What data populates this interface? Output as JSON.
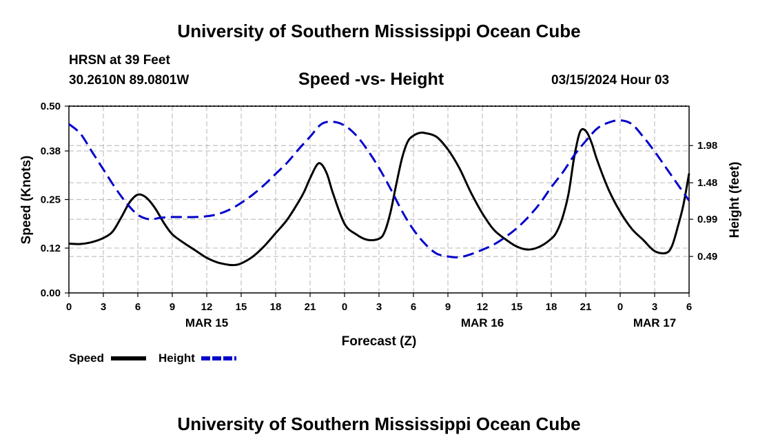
{
  "header": {
    "title_top": "University of Southern Mississippi Ocean Cube",
    "station": "HRSN at 39 Feet",
    "coords": "30.2610N  89.0801W",
    "chart_title": "Speed -vs- Height",
    "datetime": "03/15/2024 Hour 03",
    "title_bottom": "University of Southern Mississippi Ocean Cube"
  },
  "legend": {
    "speed_label": "Speed",
    "height_label": "Height"
  },
  "colors": {
    "speed": "#000000",
    "height": "#0000cc",
    "grid": "#c0c0c0"
  },
  "chart_data": {
    "type": "line",
    "title": "Speed -vs- Height",
    "xlabel": "Forecast (Z)",
    "ylabel_left": "Speed (Knots)",
    "ylabel_right": "Height (feet)",
    "x_range_hours": [
      0,
      54
    ],
    "x_ticks": [
      {
        "h": 0,
        "label": "0"
      },
      {
        "h": 3,
        "label": "3"
      },
      {
        "h": 6,
        "label": "6"
      },
      {
        "h": 9,
        "label": "9"
      },
      {
        "h": 12,
        "label": "12"
      },
      {
        "h": 15,
        "label": "15"
      },
      {
        "h": 18,
        "label": "18"
      },
      {
        "h": 21,
        "label": "21"
      },
      {
        "h": 24,
        "label": "0"
      },
      {
        "h": 27,
        "label": "3"
      },
      {
        "h": 30,
        "label": "6"
      },
      {
        "h": 33,
        "label": "9"
      },
      {
        "h": 36,
        "label": "12"
      },
      {
        "h": 39,
        "label": "15"
      },
      {
        "h": 42,
        "label": "18"
      },
      {
        "h": 45,
        "label": "21"
      },
      {
        "h": 48,
        "label": "0"
      },
      {
        "h": 51,
        "label": "3"
      },
      {
        "h": 54,
        "label": "6"
      }
    ],
    "date_labels": [
      {
        "h": 12,
        "label": "MAR 15"
      },
      {
        "h": 36,
        "label": "MAR 16"
      },
      {
        "h": 51,
        "label": "MAR 17"
      }
    ],
    "left_axis": {
      "range": [
        0,
        0.5
      ],
      "ticks": [
        0.0,
        0.12,
        0.25,
        0.38,
        0.5
      ],
      "tick_labels": [
        "0.00",
        "0.12",
        "0.25",
        "0.38",
        "0.50"
      ]
    },
    "right_axis": {
      "range": [
        0.0,
        2.51
      ],
      "ticks": [
        0.49,
        0.99,
        1.48,
        1.98
      ],
      "tick_labels": [
        "0.49",
        "0.99",
        "1.48",
        "1.98"
      ]
    },
    "series": [
      {
        "name": "Speed",
        "axis": "left",
        "style": "solid",
        "x": [
          0,
          1,
          2,
          3,
          3.8,
          4.5,
          5.3,
          6,
          6.7,
          7.5,
          8.3,
          9,
          10,
          11,
          12,
          13,
          14,
          14.5,
          15,
          16,
          17,
          18,
          19,
          20,
          20.5,
          21,
          21.6,
          22,
          22.5,
          23,
          24,
          25,
          26,
          27,
          27.5,
          28,
          28.5,
          29,
          29.5,
          30,
          30.5,
          31,
          32,
          33,
          34,
          35,
          36,
          37,
          38,
          39,
          40,
          41,
          42,
          42.5,
          43,
          43.5,
          44,
          44.5,
          45,
          45.5,
          46,
          47,
          48,
          49,
          50,
          51,
          52,
          52.5,
          53,
          53.5,
          54
        ],
        "values": [
          0.132,
          0.131,
          0.136,
          0.147,
          0.164,
          0.199,
          0.243,
          0.263,
          0.256,
          0.227,
          0.186,
          0.157,
          0.134,
          0.114,
          0.094,
          0.081,
          0.075,
          0.075,
          0.079,
          0.097,
          0.125,
          0.16,
          0.196,
          0.244,
          0.272,
          0.307,
          0.343,
          0.344,
          0.316,
          0.266,
          0.185,
          0.157,
          0.142,
          0.145,
          0.164,
          0.216,
          0.29,
          0.36,
          0.405,
          0.421,
          0.428,
          0.428,
          0.418,
          0.384,
          0.334,
          0.269,
          0.213,
          0.169,
          0.144,
          0.124,
          0.116,
          0.124,
          0.145,
          0.165,
          0.204,
          0.265,
          0.364,
          0.431,
          0.434,
          0.403,
          0.355,
          0.276,
          0.217,
          0.172,
          0.142,
          0.112,
          0.107,
          0.125,
          0.175,
          0.235,
          0.32
        ]
      },
      {
        "name": "Height",
        "axis": "right",
        "style": "dashed",
        "x": [
          0,
          1,
          2,
          3,
          4,
          5,
          6,
          7,
          8,
          9,
          10,
          11,
          12,
          13,
          14,
          15,
          16,
          17,
          18,
          19,
          20,
          21,
          22,
          23,
          24,
          25,
          26,
          27,
          28,
          29,
          30,
          31,
          32,
          33,
          34,
          35,
          36,
          37,
          38,
          39,
          40,
          41,
          42,
          43,
          44,
          45,
          46,
          47,
          48,
          49,
          50,
          51,
          52,
          53,
          54
        ],
        "values": [
          2.27,
          2.14,
          1.9,
          1.66,
          1.42,
          1.21,
          1.05,
          0.99,
          1.01,
          1.02,
          1.02,
          1.02,
          1.03,
          1.06,
          1.12,
          1.21,
          1.32,
          1.45,
          1.6,
          1.75,
          1.93,
          2.1,
          2.27,
          2.3,
          2.25,
          2.12,
          1.92,
          1.68,
          1.4,
          1.1,
          0.85,
          0.66,
          0.53,
          0.49,
          0.48,
          0.52,
          0.58,
          0.65,
          0.75,
          0.87,
          1.02,
          1.2,
          1.42,
          1.62,
          1.85,
          2.04,
          2.21,
          2.29,
          2.32,
          2.27,
          2.1,
          1.9,
          1.68,
          1.46,
          1.24
        ]
      }
    ]
  }
}
